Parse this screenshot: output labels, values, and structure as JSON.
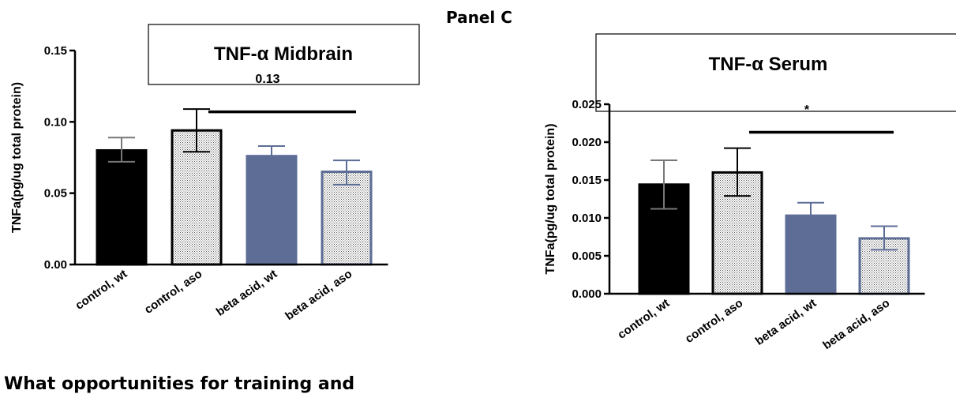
{
  "panel_label": "Panel C",
  "footer_text": "What opportunities for training and",
  "chart_data": [
    {
      "type": "bar",
      "title": "TNF-α Midbrain",
      "ylabel": "TNFa(pg/ug total protein)",
      "xlabel": "",
      "categories": [
        "control, wt",
        "control, aso",
        "beta acid, wt",
        "beta acid, aso"
      ],
      "values": [
        0.08,
        0.094,
        0.076,
        0.065
      ],
      "error_low": [
        0.072,
        0.079,
        0.07,
        0.056
      ],
      "error_high": [
        0.089,
        0.109,
        0.083,
        0.073
      ],
      "fills": [
        "solid-black",
        "dotted-white",
        "solid-slate",
        "dotted-white"
      ],
      "colors": {
        "black": "#000000",
        "slate": "#5d6d96",
        "slate_border": "#5d6d96"
      },
      "ylim": [
        0,
        0.15
      ],
      "yticks": [
        "0.00",
        "0.05",
        "0.10",
        "0.15"
      ],
      "annotation": {
        "text": "0.13",
        "from_category": "control, aso",
        "to_category": "beta acid, aso",
        "y": 0.107
      }
    },
    {
      "type": "bar",
      "title": "TNF-α Serum",
      "ylabel": "TNFa(pg/ug total protein)",
      "xlabel": "",
      "categories": [
        "control, wt",
        "control, aso",
        "beta acid, wt",
        "beta acid, aso"
      ],
      "values": [
        0.0144,
        0.016,
        0.0103,
        0.0073
      ],
      "error_low": [
        0.0112,
        0.0129,
        0.0086,
        0.0058
      ],
      "error_high": [
        0.0176,
        0.0192,
        0.012,
        0.0089
      ],
      "fills": [
        "solid-black",
        "dotted-white",
        "solid-slate",
        "dotted-white"
      ],
      "colors": {
        "black": "#000000",
        "slate": "#5d6d96",
        "slate_border": "#5d6d96"
      },
      "ylim": [
        0,
        0.025
      ],
      "yticks": [
        "0.000",
        "0.005",
        "0.010",
        "0.015",
        "0.020",
        "0.025"
      ],
      "annotation": {
        "text": "*",
        "from_category": "control, aso",
        "to_category": "beta acid, aso",
        "y": 0.0213
      }
    }
  ]
}
